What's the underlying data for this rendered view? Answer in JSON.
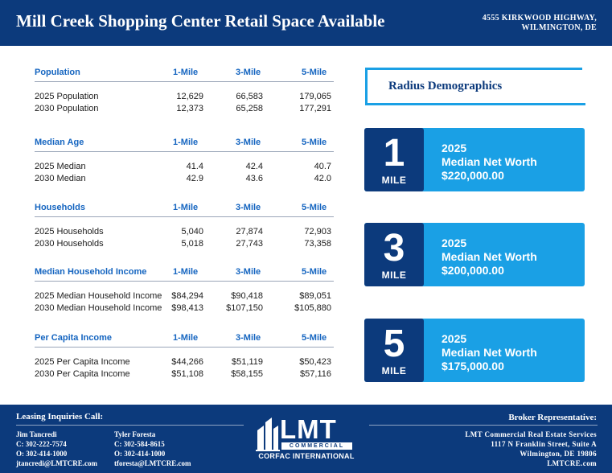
{
  "header": {
    "title": "Mill Creek Shopping Center Retail Space Available",
    "address_line1": "4555 KIRKWOOD HIGHWAY,",
    "address_line2": "WILMINGTON, DE"
  },
  "demographics": {
    "sections": [
      {
        "heading": "Population",
        "cols": [
          "1-Mile",
          "3-Mile",
          "5-Mile"
        ],
        "rows": [
          {
            "label": "2025 Population",
            "values": [
              "12,629",
              "66,583",
              "179,065"
            ]
          },
          {
            "label": "2030 Population",
            "values": [
              "12,373",
              "65,258",
              "177,291"
            ]
          }
        ]
      },
      {
        "heading": "Median Age",
        "cols": [
          "1-Mile",
          "3-Mile",
          "5-Mile"
        ],
        "rows": [
          {
            "label": "2025 Median",
            "values": [
              "41.4",
              "42.4",
              "40.7"
            ]
          },
          {
            "label": "2030 Median",
            "values": [
              "42.9",
              "43.6",
              "42.0"
            ]
          }
        ]
      },
      {
        "heading": "Households",
        "cols": [
          "1-Mile",
          "3-Mile",
          "5-Mile"
        ],
        "rows": [
          {
            "label": "2025 Households",
            "values": [
              "5,040",
              "27,874",
              "72,903"
            ]
          },
          {
            "label": "2030 Households",
            "values": [
              "5,018",
              "27,743",
              "73,358"
            ]
          }
        ]
      },
      {
        "heading": "Median Household Income",
        "cols": [
          "1-Mile",
          "3-Mile",
          "5-Mile"
        ],
        "rows": [
          {
            "label": "2025 Median Household Income",
            "values": [
              "$84,294",
              "$90,418",
              "$89,051"
            ]
          },
          {
            "label": "2030 Median Household Income",
            "values": [
              "$98,413",
              "$107,150",
              "$105,880"
            ]
          }
        ]
      },
      {
        "heading": "Per Capita Income",
        "cols": [
          "1-Mile",
          "3-Mile",
          "5-Mile"
        ],
        "rows": [
          {
            "label": "2025 Per Capita Income",
            "values": [
              "$44,266",
              "$51,119",
              "$50,423"
            ]
          },
          {
            "label": "2030 Per Capita Income",
            "values": [
              "$51,108",
              "$58,155",
              "$57,116"
            ]
          }
        ]
      }
    ]
  },
  "radius": {
    "title": "Radius Demographics",
    "cards": [
      {
        "number": "1",
        "unit": "MILE",
        "year": "2025",
        "metric": "Median Net Worth",
        "value": "$220,000.00"
      },
      {
        "number": "3",
        "unit": "MILE",
        "year": "2025",
        "metric": "Median Net Worth",
        "value": "$200,000.00"
      },
      {
        "number": "5",
        "unit": "MILE",
        "year": "2025",
        "metric": "Median Net Worth",
        "value": "$175,000.00"
      }
    ]
  },
  "footer": {
    "leasing_title": "Leasing Inquiries Call:",
    "contacts": [
      {
        "name": "Jim Tancredi",
        "cell": "C: 302-222-7574",
        "office": "O: 302-414-1000",
        "email": "jtancredi@LMTCRE.com"
      },
      {
        "name": "Tyler Foresta",
        "cell": "C: 302-584-8615",
        "office": "O: 302-414-1000",
        "email": "tforesta@LMTCRE.com"
      }
    ],
    "logo": {
      "main": "LMT",
      "sub": "COMMERCIAL",
      "tagline": "CORFAC INTERNATIONAL"
    },
    "broker_title": "Broker Representative:",
    "firm": {
      "name": "LMT Commercial Real Estate Services",
      "street": "1117 N Franklin Street, Suite A",
      "city": "Wilmington, DE 19806",
      "web": "LMTCRE.com"
    }
  },
  "colors": {
    "navy": "#0c3a7c",
    "accent_blue": "#1aa0e5",
    "heading_blue": "#1565c0"
  }
}
